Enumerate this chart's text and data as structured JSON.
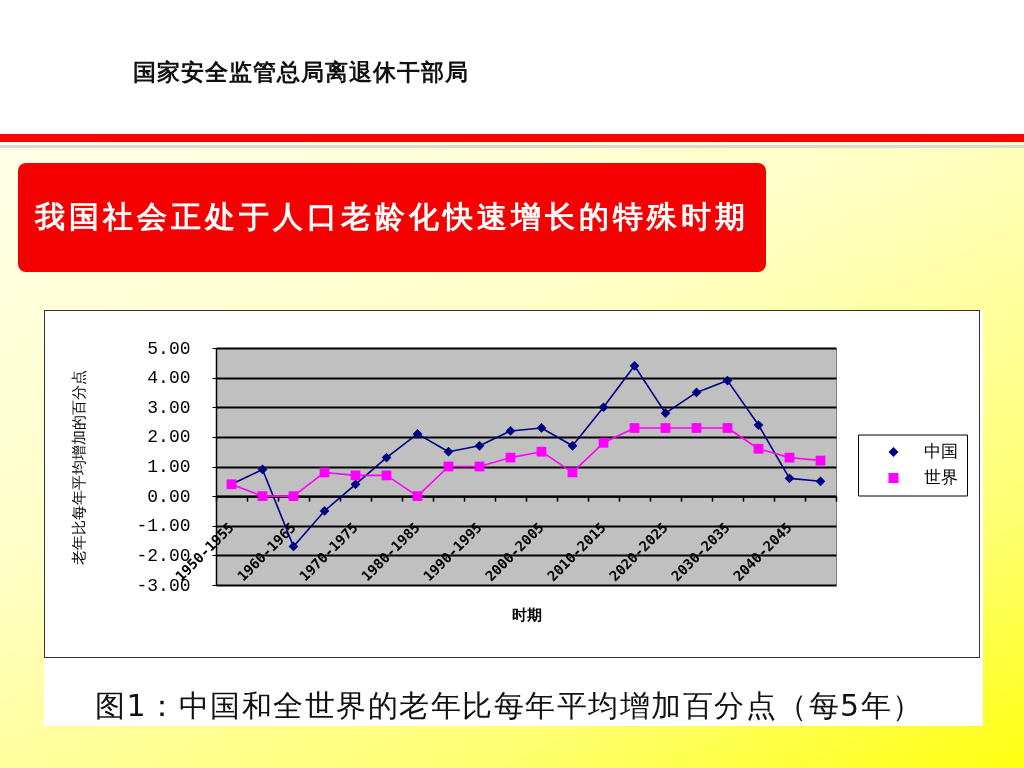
{
  "chart_data": {
    "type": "line",
    "title": "我国社会正处于人口老龄化快速增长的特殊时期",
    "xlabel": "时期",
    "ylabel": "老年比每年平均增加的百分点",
    "annotations": [
      "国家安全监管总局离退休干部局",
      "图1：中国和全世界的老年比每年平均增加百分点（每5年）"
    ],
    "categories": [
      "1950-1955",
      null,
      "1960-1965",
      null,
      "1970-1975",
      null,
      "1980-1985",
      null,
      "1990-1995",
      null,
      "2000-2005",
      null,
      "2010-2015",
      null,
      "2020-2025",
      null,
      "2030-2035",
      null,
      "2040-2045",
      null
    ],
    "series": [
      {
        "name": "中国",
        "color": "#000080",
        "marker": "diamond",
        "values": [
          0.4,
          0.9,
          -1.7,
          -0.5,
          0.4,
          1.3,
          2.1,
          1.5,
          1.7,
          2.2,
          2.3,
          1.7,
          3.0,
          4.4,
          2.8,
          3.5,
          3.9,
          2.4,
          0.6,
          0.5
        ]
      },
      {
        "name": "世界",
        "color": "#ff00ff",
        "marker": "square",
        "values": [
          0.4,
          0,
          0,
          0.8,
          0.7,
          0.7,
          0,
          1.0,
          1.0,
          1.3,
          1.5,
          0.8,
          1.8,
          2.3,
          2.3,
          2.3,
          2.3,
          1.6,
          1.3,
          1.2
        ]
      }
    ],
    "ylim": [
      -3,
      5
    ],
    "yticks": [
      {
        "value": 5,
        "label": "5.00"
      },
      {
        "value": 4,
        "label": "4.00"
      },
      {
        "value": 3,
        "label": "3.00"
      },
      {
        "value": 2,
        "label": "2.00"
      },
      {
        "value": 1,
        "label": "1.00"
      },
      {
        "value": 0,
        "label": "0.00"
      },
      {
        "value": -1,
        "label": "-1.00"
      },
      {
        "value": -2,
        "label": "-2.00"
      },
      {
        "value": -3,
        "label": "-3.00"
      }
    ],
    "grid": "y",
    "legend": "right"
  }
}
